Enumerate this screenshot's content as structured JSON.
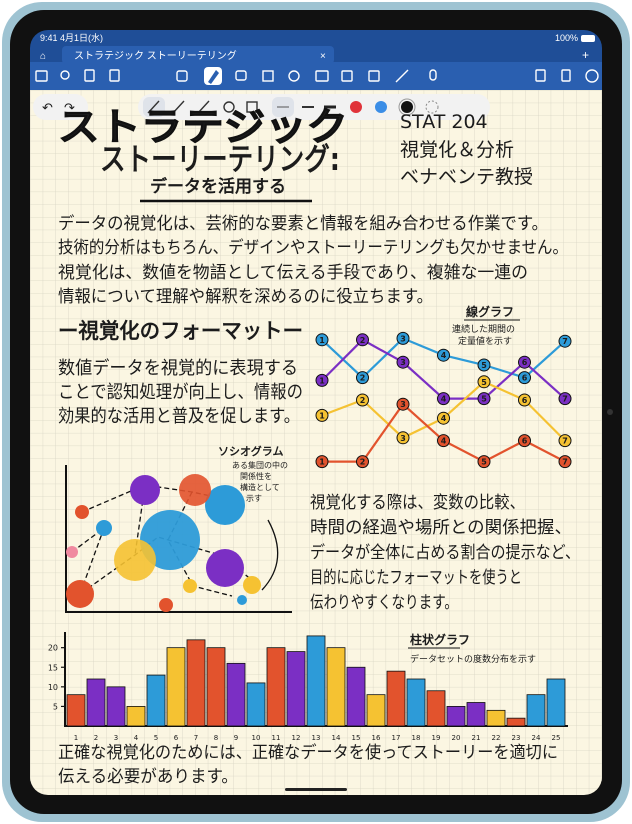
{
  "status_bar": {
    "time": "9:41",
    "date": "4月1日(水)",
    "battery": "100%"
  },
  "tab": {
    "title": "ストラテジック ストーリーテリング"
  },
  "note": {
    "title_line1": "ストラテジック",
    "title_line2": "ストーリーテリング:",
    "subtitle": "データを活用する",
    "course": [
      "STAT 204",
      "視覚化＆分析",
      "ベナベンテ教授"
    ],
    "intro": [
      "データの視覚化は、芸術的な要素と情報を組み合わせる作業です。",
      "技術的分析はもちろん、デザインやストーリーテリングも欠かせません。",
      "視覚化は、数値を物語として伝える手段であり、複雑な一連の",
      "情報について理解や解釈を深めるのに役立ちます。"
    ],
    "section_heading": "ー視覚化のフォーマットー",
    "format_text": [
      "数値データを視覚的に表現する",
      "ことで認知処理が向上し、情報の",
      "効果的な活用と普及を促します。"
    ],
    "selection_text": [
      "視覚化する際は、変数の比較、",
      "時間の経過や場所との関係把握、",
      "データが全体に占める割合の提示など、",
      "目的に応じたフォーマットを使うと",
      "伝わりやすくなります。"
    ],
    "closing": [
      "正確な視覚化のためには、正確なデータを使ってストーリーを適切に",
      "伝える必要があります。"
    ]
  },
  "line_chart": {
    "type": "line",
    "title": "線グラフ",
    "caption": [
      "連続した期間の",
      "定量値を示す"
    ],
    "points": [
      1,
      2,
      3,
      4,
      5,
      6,
      7
    ],
    "ylim": [
      0,
      10
    ],
    "series": [
      {
        "color": "#2d9bd8",
        "values": [
          9.3,
          6.6,
          9.4,
          8.2,
          7.5,
          6.6,
          9.2
        ]
      },
      {
        "color": "#7b2fc4",
        "values": [
          6.4,
          9.3,
          7.7,
          5.1,
          5.1,
          7.7,
          5.1
        ]
      },
      {
        "color": "#f5c232",
        "values": [
          3.9,
          5.0,
          2.3,
          3.7,
          6.3,
          5.0,
          2.1
        ]
      },
      {
        "color": "#e2532d",
        "values": [
          0.6,
          0.6,
          4.7,
          2.1,
          0.6,
          2.1,
          0.6
        ]
      }
    ]
  },
  "sociogram": {
    "title": "ソシオグラム",
    "caption": [
      "ある集団の中の",
      "関係性を",
      "構造として",
      "示す"
    ]
  },
  "bar_chart": {
    "type": "bar",
    "title": "柱状グラフ",
    "caption": "データセットの度数分布を示す",
    "categories": [
      "1",
      "2",
      "3",
      "4",
      "5",
      "6",
      "7",
      "8",
      "9",
      "10",
      "11",
      "12",
      "13",
      "14",
      "15",
      "16",
      "17",
      "18",
      "19",
      "20",
      "21",
      "22",
      "23",
      "24",
      "25"
    ],
    "values": [
      8,
      12,
      10,
      5,
      13,
      20,
      22,
      20,
      16,
      11,
      20,
      19,
      23,
      20,
      15,
      8,
      14,
      12,
      9,
      5,
      6,
      4,
      2,
      8,
      12
    ],
    "colors": [
      "#e2532d",
      "#7b2fc4",
      "#7b2fc4",
      "#f5c232",
      "#2d9bd8",
      "#f5c232",
      "#e2532d",
      "#e2532d",
      "#7b2fc4",
      "#2d9bd8",
      "#e2532d",
      "#7b2fc4",
      "#2d9bd8",
      "#f5c232",
      "#7b2fc4",
      "#f5c232",
      "#e2532d",
      "#2d9bd8",
      "#e2532d",
      "#7b2fc4",
      "#7b2fc4",
      "#f5c232",
      "#e2532d",
      "#2d9bd8",
      "#2d9bd8"
    ],
    "ylim": [
      0,
      24
    ],
    "yticks": [
      5,
      10,
      15,
      20
    ]
  }
}
